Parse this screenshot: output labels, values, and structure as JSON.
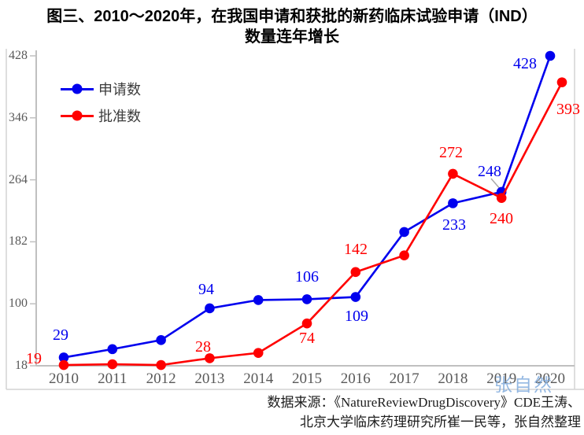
{
  "title": {
    "line1": "图三、2010～2020年，在我国申请和获批的新药临床试验申请（IND）",
    "line2": "数量连年增长"
  },
  "watermark": {
    "text": "张自然",
    "color": "#7AA7DB"
  },
  "source": {
    "line1": "数据来源：《NatureReviewDrugDiscovery》CDE王涛、",
    "line2": "北京大学临床药理研究所崔一民等，张自然整理"
  },
  "colors": {
    "applications_series": "#0000EE",
    "approvals_series": "#FF0000",
    "axis_line": "#C0C0C0",
    "axis_text": "#595959",
    "frame_line": "#D4D4D4",
    "leader_line": "#A8A8A8"
  },
  "chart_data": {
    "type": "line",
    "title": "图三、2010～2020年，在我国申请和获批的新药临床试验申请（IND）数量连年增长",
    "x": [
      2010,
      2011,
      2012,
      2013,
      2014,
      2015,
      2016,
      2017,
      2018,
      2019,
      2020
    ],
    "x_tick_labels": [
      "2010",
      "2011",
      "2012",
      "2013",
      "2014",
      "2015",
      "2016",
      "2017",
      "2018",
      "2019",
      "2020"
    ],
    "y_ticks": [
      18,
      100,
      182,
      264,
      346,
      428
    ],
    "ylim": [
      18,
      428
    ],
    "grid": false,
    "legend_position": "top-left",
    "series": [
      {
        "name": "申请数",
        "color": "#0000EE",
        "values": [
          29,
          40,
          52,
          94,
          105,
          106,
          109,
          195,
          233,
          248,
          428
        ],
        "labeled": {
          "2010": 29,
          "2013": 94,
          "2015": 106,
          "2016": 109,
          "2018": 233,
          "2019": 248,
          "2020": 428
        }
      },
      {
        "name": "批准数",
        "color": "#FF0000",
        "values": [
          19,
          20,
          19,
          28,
          35,
          74,
          142,
          164,
          272,
          240,
          393
        ],
        "labeled": {
          "2010": 19,
          "2013": 28,
          "2015": 74,
          "2016": 142,
          "2018": 272,
          "2019": 240,
          "2020": 393
        }
      }
    ]
  }
}
